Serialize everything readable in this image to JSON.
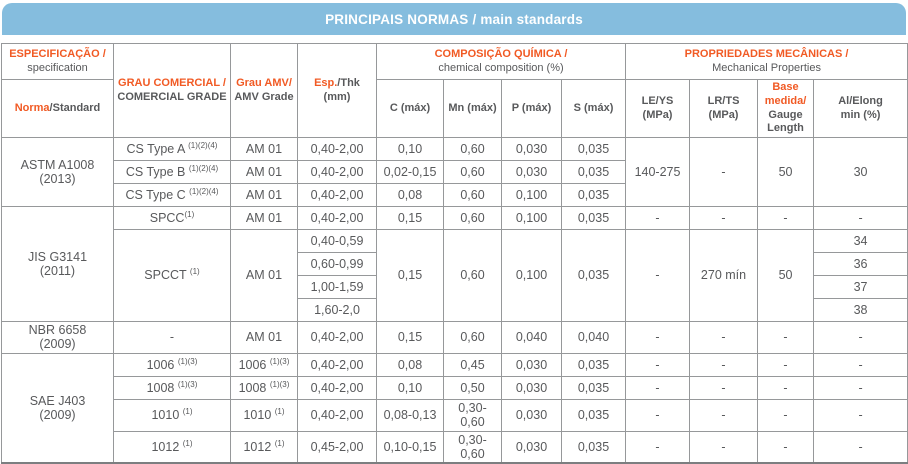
{
  "title_bar": "PRINCIPAIS NORMAS / main standards",
  "colors": {
    "bar_blue": "#85BDDE",
    "accent_orange": "#F15A24",
    "text_gray": "#58595B",
    "border_gray": "#96989A"
  },
  "table": {
    "header": {
      "spec": {
        "pt": "ESPECIFICAÇÃO /",
        "en": "specification"
      },
      "norma": {
        "pt": "Norma",
        "en": "/Standard"
      },
      "grade": {
        "pt": "GRAU COMERCIAL /",
        "en": "COMERCIAL GRADE"
      },
      "amv": {
        "pt": "Grau AMV/",
        "en": "AMV Grade"
      },
      "esp": {
        "pt": "Esp.",
        "en": "/Thk",
        "unit": "(mm)"
      },
      "chem": {
        "pt": "COMPOSIÇÃO QUÍMICA /",
        "en": "chemical composition (%)"
      },
      "mech": {
        "pt": "PROPRIEDADES MECÂNICAS /",
        "en": "Mechanical Properties"
      },
      "c": "C (máx)",
      "mn": "Mn (máx)",
      "p": "P (máx)",
      "s": "S (máx)",
      "le": {
        "l1": "LE/YS",
        "l2": "(MPa)"
      },
      "lr": "LR/TS (MPa)",
      "base": {
        "pt": "Base medida/",
        "en": "Gauge Length"
      },
      "al": {
        "l1": "Al/Elong",
        "l2": "min (%)"
      }
    },
    "body": [
      {
        "cells": [
          {
            "name": "norma-cell",
            "lines": [
              "ASTM A1008",
              "(2013)"
            ],
            "rs": 3
          },
          {
            "name": "grade-cell",
            "t": "CS Type A ",
            "sup": "(1)(2)(4)"
          },
          {
            "t": "AM 01"
          },
          {
            "t": "0,40-2,00"
          },
          {
            "t": "0,10"
          },
          {
            "t": "0,60"
          },
          {
            "t": "0,030"
          },
          {
            "t": "0,035"
          },
          {
            "t": "140-275",
            "rs": 3
          },
          {
            "t": "-",
            "rs": 3
          },
          {
            "t": "50",
            "rs": 3
          },
          {
            "t": "30",
            "rs": 3
          }
        ]
      },
      {
        "cells": [
          {
            "name": "grade-cell",
            "t": "CS Type B ",
            "sup": "(1)(2)(4)"
          },
          {
            "t": "AM 01"
          },
          {
            "t": "0,40-2,00"
          },
          {
            "t": "0,02-0,15"
          },
          {
            "t": "0,60"
          },
          {
            "t": "0,030"
          },
          {
            "t": "0,035"
          }
        ]
      },
      {
        "cells": [
          {
            "name": "grade-cell",
            "t": "CS Type C ",
            "sup": "(1)(2)(4)"
          },
          {
            "t": "AM 01"
          },
          {
            "t": "0,40-2,00"
          },
          {
            "t": "0,08"
          },
          {
            "t": "0,60"
          },
          {
            "t": "0,100"
          },
          {
            "t": "0,035"
          }
        ]
      },
      {
        "cells": [
          {
            "name": "norma-cell",
            "lines": [
              "JIS G3141",
              "(2011)"
            ],
            "rs": 5
          },
          {
            "name": "grade-cell",
            "t": "SPCC",
            "sup": "(1)"
          },
          {
            "t": "AM 01"
          },
          {
            "t": "0,40-2,00"
          },
          {
            "t": "0,15"
          },
          {
            "t": "0,60"
          },
          {
            "t": "0,100"
          },
          {
            "t": "0,035"
          },
          {
            "t": "-"
          },
          {
            "t": "-"
          },
          {
            "t": "-"
          },
          {
            "t": "-"
          }
        ]
      },
      {
        "cells": [
          {
            "name": "grade-cell",
            "t": "SPCCT ",
            "sup": "(1)",
            "rs": 4
          },
          {
            "t": "AM 01",
            "rs": 4
          },
          {
            "t": "0,40-0,59"
          },
          {
            "t": "0,15",
            "rs": 4
          },
          {
            "t": "0,60",
            "rs": 4
          },
          {
            "t": "0,100",
            "rs": 4
          },
          {
            "t": "0,035",
            "rs": 4
          },
          {
            "t": "-",
            "rs": 4
          },
          {
            "t": "270 mín",
            "rs": 4
          },
          {
            "t": "50",
            "rs": 4
          },
          {
            "t": "34"
          }
        ]
      },
      {
        "cells": [
          {
            "t": "0,60-0,99"
          },
          {
            "t": "36"
          }
        ]
      },
      {
        "cells": [
          {
            "t": "1,00-1,59"
          },
          {
            "t": "37"
          }
        ]
      },
      {
        "cells": [
          {
            "t": "1,60-2,0"
          },
          {
            "t": "38"
          }
        ]
      },
      {
        "cells": [
          {
            "name": "norma-cell",
            "lines": [
              "NBR 6658",
              "(2009)"
            ]
          },
          {
            "name": "grade-cell",
            "t": "-"
          },
          {
            "t": "AM 01"
          },
          {
            "t": "0,40-2,00"
          },
          {
            "t": "0,15"
          },
          {
            "t": "0,60"
          },
          {
            "t": "0,040"
          },
          {
            "t": "0,040"
          },
          {
            "t": "-"
          },
          {
            "t": "-"
          },
          {
            "t": "-"
          },
          {
            "t": "-"
          }
        ]
      },
      {
        "cells": [
          {
            "name": "norma-cell",
            "lines": [
              "SAE J403",
              "(2009)"
            ],
            "rs": 4
          },
          {
            "name": "grade-cell",
            "t": "1006 ",
            "sup": "(1)(3)"
          },
          {
            "t": "1006 ",
            "sup": "(1)(3)"
          },
          {
            "t": "0,40-2,00"
          },
          {
            "t": "0,08"
          },
          {
            "t": "0,45"
          },
          {
            "t": "0,030"
          },
          {
            "t": "0,035"
          },
          {
            "t": "-"
          },
          {
            "t": "-"
          },
          {
            "t": "-"
          },
          {
            "t": "-"
          }
        ]
      },
      {
        "cells": [
          {
            "name": "grade-cell",
            "t": "1008 ",
            "sup": "(1)(3)"
          },
          {
            "t": "1008 ",
            "sup": "(1)(3)"
          },
          {
            "t": "0,40-2,00"
          },
          {
            "t": "0,10"
          },
          {
            "t": "0,50"
          },
          {
            "t": "0,030"
          },
          {
            "t": "0,035"
          },
          {
            "t": "-"
          },
          {
            "t": "-"
          },
          {
            "t": "-"
          },
          {
            "t": "-"
          }
        ]
      },
      {
        "cells": [
          {
            "name": "grade-cell",
            "t": "1010 ",
            "sup": "(1)"
          },
          {
            "t": "1010 ",
            "sup": "(1)"
          },
          {
            "t": "0,40-2,00"
          },
          {
            "t": "0,08-0,13"
          },
          {
            "lines": [
              "0,30-",
              "0,60"
            ]
          },
          {
            "t": "0,030"
          },
          {
            "t": "0,035"
          },
          {
            "t": "-"
          },
          {
            "t": "-"
          },
          {
            "t": "-"
          },
          {
            "t": "-"
          }
        ]
      },
      {
        "cells": [
          {
            "name": "grade-cell",
            "t": "1012 ",
            "sup": "(1)"
          },
          {
            "t": "1012 ",
            "sup": "(1)"
          },
          {
            "t": "0,45-2,00"
          },
          {
            "t": "0,10-0,15"
          },
          {
            "lines": [
              "0,30-",
              "0,60"
            ]
          },
          {
            "t": "0,030"
          },
          {
            "t": "0,035"
          },
          {
            "t": "-"
          },
          {
            "t": "-"
          },
          {
            "t": "-"
          },
          {
            "t": "-"
          }
        ]
      }
    ]
  }
}
